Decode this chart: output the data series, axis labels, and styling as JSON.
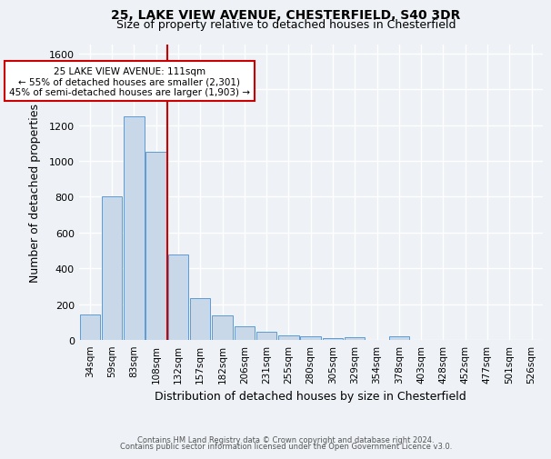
{
  "title_line1": "25, LAKE VIEW AVENUE, CHESTERFIELD, S40 3DR",
  "title_line2": "Size of property relative to detached houses in Chesterfield",
  "xlabel": "Distribution of detached houses by size in Chesterfield",
  "ylabel": "Number of detached properties",
  "footnote_line1": "Contains HM Land Registry data © Crown copyright and database right 2024.",
  "footnote_line2": "Contains public sector information licensed under the Open Government Licence v3.0.",
  "bar_labels": [
    "34sqm",
    "59sqm",
    "83sqm",
    "108sqm",
    "132sqm",
    "157sqm",
    "182sqm",
    "206sqm",
    "231sqm",
    "255sqm",
    "280sqm",
    "305sqm",
    "329sqm",
    "354sqm",
    "378sqm",
    "403sqm",
    "428sqm",
    "452sqm",
    "477sqm",
    "501sqm",
    "526sqm"
  ],
  "bar_values": [
    140,
    800,
    1250,
    1050,
    475,
    235,
    135,
    75,
    45,
    25,
    20,
    10,
    15,
    0,
    20,
    0,
    0,
    0,
    0,
    0,
    0
  ],
  "bar_color": "#c8d8e8",
  "bar_edge_color": "#5b9bd5",
  "property_line_x": 3.5,
  "property_line_color": "#cc0000",
  "annotation_text": "25 LAKE VIEW AVENUE: 111sqm\n← 55% of detached houses are smaller (2,301)\n45% of semi-detached houses are larger (1,903) →",
  "annotation_box_color": "#ffffff",
  "annotation_box_edge": "#cc0000",
  "ylim": [
    0,
    1650
  ],
  "yticks": [
    0,
    200,
    400,
    600,
    800,
    1000,
    1200,
    1400,
    1600
  ],
  "background_color": "#eef2f6",
  "plot_bg_color": "#eef2f6",
  "grid_color": "#ffffff"
}
